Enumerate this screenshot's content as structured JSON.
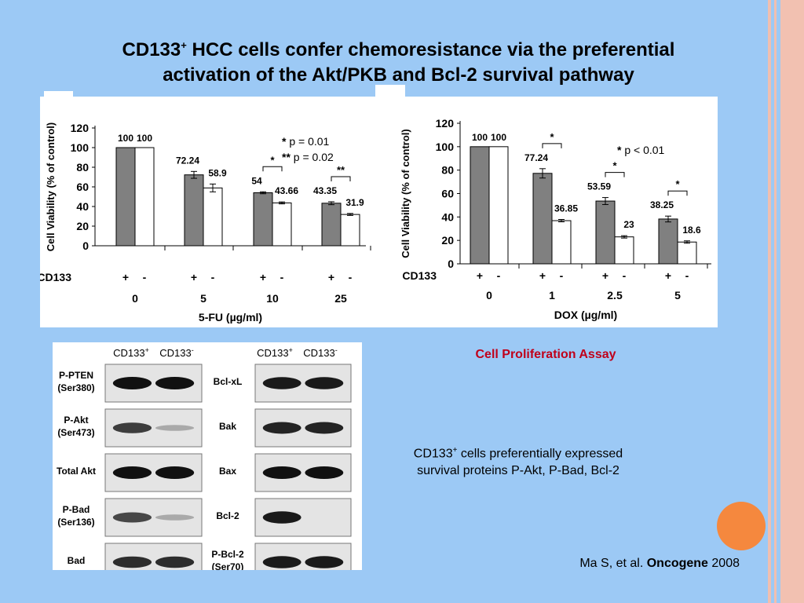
{
  "slide": {
    "title_part1": "CD133",
    "title_sup": "+",
    "title_part2": " HCC cells confer chemoresistance via the preferential",
    "title_line2": "activation of the Akt/PKB and Bcl-2 survival pathway",
    "assay_label": "Cell Proliferation Assay",
    "note_part1": "CD133",
    "note_sup": "+",
    "note_part2": " cells preferentially expressed",
    "note_line2": "survival proteins P-Akt, P-Bad, Bcl-2",
    "cite_author": "Ma S, et al. ",
    "cite_journal": "Oncogene",
    "cite_year": " 2008",
    "colors": {
      "background": "#9cc9f5",
      "accent_circle": "#f5883e",
      "assay_label": "#c0001a",
      "bar_positive": "#808080",
      "bar_negative": "#ffffff"
    }
  },
  "chart_data": [
    {
      "type": "bar",
      "xlabel": "5-FU (µg/ml)",
      "ylabel": "Cell Viability (% of control)",
      "ylim": [
        0,
        120
      ],
      "yticks": [
        "0",
        "20",
        "40",
        "60",
        "80",
        "100",
        "120"
      ],
      "row_label": "CD133",
      "categories": [
        "0",
        "5",
        "10",
        "25"
      ],
      "series": [
        {
          "name": "+",
          "values": [
            100,
            72.24,
            54,
            43.35
          ],
          "labels": [
            "100",
            "72.24",
            "54",
            "43.35"
          ],
          "color": "#808080"
        },
        {
          "name": "-",
          "values": [
            100,
            58.9,
            43.66,
            31.9
          ],
          "labels": [
            "100",
            "58.9",
            "43.66",
            "31.9"
          ],
          "color": "#ffffff"
        }
      ],
      "error_bars": {
        "+": [
          0,
          3.5,
          1.0,
          1.5
        ],
        "-": [
          0,
          4,
          1.0,
          1.0
        ]
      },
      "significance": [
        {
          "category": "10",
          "mark": "*"
        },
        {
          "category": "25",
          "mark": "**"
        }
      ],
      "legend_notes": [
        {
          "stars": "*",
          "text": "p = 0.01"
        },
        {
          "stars": "**",
          "text": "p = 0.02"
        }
      ]
    },
    {
      "type": "bar",
      "xlabel": "DOX (µg/ml)",
      "ylabel": "Cell Viability (% of control)",
      "ylim": [
        0,
        120
      ],
      "yticks": [
        "0",
        "20",
        "40",
        "60",
        "80",
        "100",
        "120"
      ],
      "row_label": "CD133",
      "categories": [
        "0",
        "1",
        "2.5",
        "5"
      ],
      "series": [
        {
          "name": "+",
          "values": [
            100,
            77.24,
            53.59,
            38.25
          ],
          "labels": [
            "100",
            "77.24",
            "53.59",
            "38.25"
          ],
          "color": "#808080"
        },
        {
          "name": "-",
          "values": [
            100,
            36.85,
            23,
            18.6
          ],
          "labels": [
            "100",
            "36.85",
            "23",
            "18.6"
          ],
          "color": "#ffffff"
        }
      ],
      "error_bars": {
        "+": [
          0,
          4,
          3,
          2.5
        ],
        "-": [
          0,
          1,
          1,
          1
        ]
      },
      "significance": [
        {
          "category": "1",
          "mark": "*"
        },
        {
          "category": "2.5",
          "mark": "*"
        },
        {
          "category": "5",
          "mark": "*"
        }
      ],
      "legend_notes": [
        {
          "stars": "*",
          "text": "p < 0.01"
        }
      ]
    }
  ],
  "blots": {
    "col_plus": "CD133+",
    "col_minus": "CD133-",
    "left": [
      {
        "label1": "P-PTEN",
        "label2": "(Ser380)",
        "bands": [
          1.0,
          1.0
        ]
      },
      {
        "label1": "P-Akt",
        "label2": "(Ser473)",
        "bands": [
          0.75,
          0.15
        ]
      },
      {
        "label1": "Total Akt",
        "label2": "",
        "bands": [
          1.0,
          1.0
        ]
      },
      {
        "label1": "P-Bad",
        "label2": "(Ser136)",
        "bands": [
          0.7,
          0.15
        ]
      },
      {
        "label1": "Bad",
        "label2": "",
        "bands": [
          0.85,
          0.85
        ]
      }
    ],
    "right": [
      {
        "label1": "Bcl-xL",
        "label2": "",
        "bands": [
          0.95,
          0.95
        ]
      },
      {
        "label1": "Bak",
        "label2": "",
        "bands": [
          0.9,
          0.9
        ]
      },
      {
        "label1": "Bax",
        "label2": "",
        "bands": [
          1.0,
          1.0
        ]
      },
      {
        "label1": "Bcl-2",
        "label2": "",
        "bands": [
          0.95,
          0.0
        ]
      },
      {
        "label1": "P-Bcl-2",
        "label2": "(Ser70)",
        "bands": [
          0.95,
          0.95
        ]
      }
    ]
  }
}
